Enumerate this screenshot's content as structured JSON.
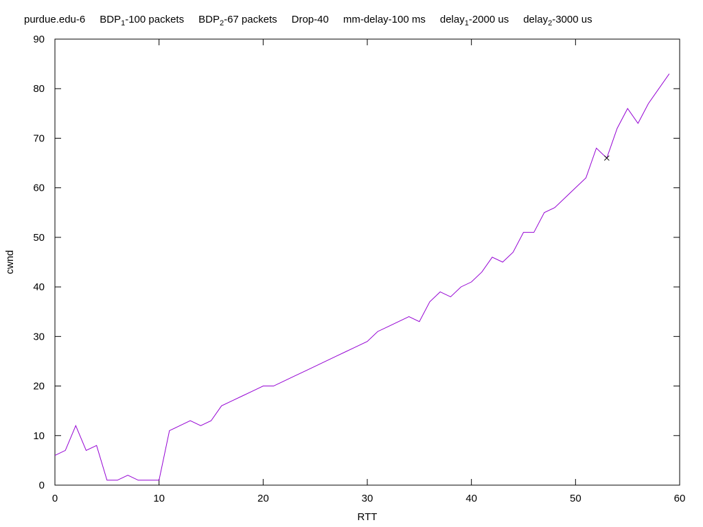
{
  "title_parts": [
    {
      "main": "purdue.edu-6",
      "sub": "",
      "tail": ""
    },
    {
      "main": "BDP",
      "sub": "1",
      "tail": "-100 packets"
    },
    {
      "main": "BDP",
      "sub": "2",
      "tail": "-67 packets"
    },
    {
      "main": "Drop-40",
      "sub": "",
      "tail": ""
    },
    {
      "main": "mm-delay-100 ms",
      "sub": "",
      "tail": ""
    },
    {
      "main": "delay",
      "sub": "1",
      "tail": "-2000 us"
    },
    {
      "main": "delay",
      "sub": "2",
      "tail": "-3000 us"
    }
  ],
  "chart_data": {
    "type": "line",
    "title": "purdue.edu-6 BDP1-100 packets BDP2-67 packets Drop-40 mm-delay-100 ms delay1-2000 us delay2-3000 us",
    "xlabel": "RTT",
    "ylabel": "cwnd",
    "xlim": [
      0,
      60
    ],
    "ylim": [
      0,
      90
    ],
    "x_ticks": [
      0,
      10,
      20,
      30,
      40,
      50,
      60
    ],
    "y_ticks": [
      0,
      10,
      20,
      30,
      40,
      50,
      60,
      70,
      80,
      90
    ],
    "grid": false,
    "series": [
      {
        "color": "#9400d3",
        "x": [
          0,
          1,
          2,
          3,
          4,
          5,
          6,
          7,
          8,
          9,
          10,
          11,
          12,
          13,
          14,
          15,
          16,
          17,
          18,
          19,
          20,
          21,
          22,
          23,
          24,
          25,
          26,
          27,
          28,
          29,
          30,
          31,
          32,
          33,
          34,
          35,
          36,
          37,
          38,
          39,
          40,
          41,
          42,
          43,
          44,
          45,
          46,
          47,
          48,
          49,
          50,
          51,
          52,
          53,
          54,
          55,
          56,
          57,
          58,
          59
        ],
        "y": [
          6,
          7,
          12,
          7,
          8,
          1,
          1,
          2,
          1,
          1,
          1,
          11,
          12,
          13,
          12,
          13,
          16,
          17,
          18,
          19,
          20,
          20,
          21,
          22,
          23,
          24,
          25,
          26,
          27,
          28,
          29,
          31,
          32,
          33,
          34,
          33,
          37,
          39,
          38,
          40,
          41,
          43,
          46,
          45,
          47,
          51,
          51,
          55,
          56,
          58,
          60,
          62,
          68,
          66,
          72,
          76,
          73,
          77,
          80,
          83
        ]
      }
    ],
    "markers": [
      {
        "x": 53,
        "y": 66,
        "symbol": "x",
        "color": "#000000"
      }
    ]
  }
}
